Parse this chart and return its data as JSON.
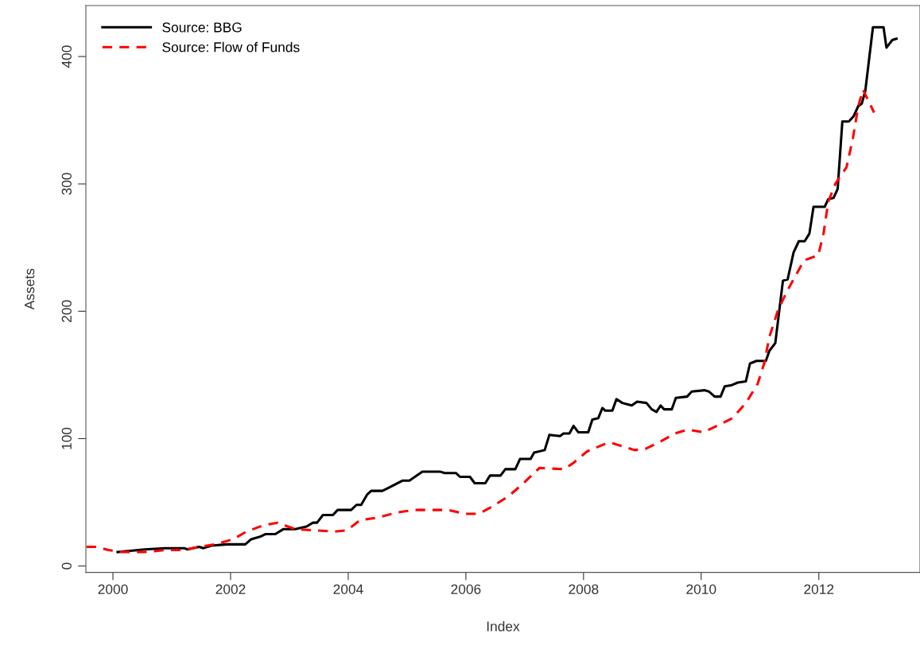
{
  "chart_data": {
    "type": "line",
    "xlabel": "Index",
    "ylabel": "Assets",
    "xlim": [
      1999.54,
      2013.72
    ],
    "ylim": [
      -5,
      440
    ],
    "xticks": [
      2000,
      2002,
      2004,
      2006,
      2008,
      2010,
      2012
    ],
    "yticks": [
      0,
      100,
      200,
      300,
      400
    ],
    "grid": false,
    "legend": "top left",
    "marker": "none",
    "series": [
      {
        "name": "Source: BBG",
        "color": "#000000",
        "line_style": "solid",
        "x": [
          2000.08,
          2000.54,
          2000.88,
          2001.21,
          2001.27,
          2001.46,
          2001.54,
          2001.67,
          2001.94,
          2002.25,
          2002.35,
          2002.5,
          2002.59,
          2002.76,
          2002.9,
          2003.1,
          2003.29,
          2003.4,
          2003.47,
          2003.57,
          2003.74,
          2003.82,
          2004.05,
          2004.14,
          2004.22,
          2004.32,
          2004.39,
          2004.58,
          2004.67,
          2004.92,
          2005.04,
          2005.26,
          2005.57,
          2005.64,
          2005.83,
          2005.9,
          2006.07,
          2006.15,
          2006.33,
          2006.41,
          2006.59,
          2006.67,
          2006.84,
          2006.92,
          2007.1,
          2007.16,
          2007.34,
          2007.42,
          2007.6,
          2007.66,
          2007.76,
          2007.83,
          2007.91,
          2008.08,
          2008.15,
          2008.25,
          2008.32,
          2008.37,
          2008.49,
          2008.56,
          2008.66,
          2008.82,
          2008.91,
          2009.07,
          2009.16,
          2009.24,
          2009.31,
          2009.37,
          2009.5,
          2009.57,
          2009.76,
          2009.84,
          2010.06,
          2010.13,
          2010.23,
          2010.33,
          2010.4,
          2010.52,
          2010.62,
          2010.76,
          2010.83,
          2010.94,
          2011.1,
          2011.16,
          2011.26,
          2011.39,
          2011.47,
          2011.57,
          2011.66,
          2011.76,
          2011.84,
          2011.91,
          2012.1,
          2012.16,
          2012.25,
          2012.32,
          2012.4,
          2012.51,
          2012.59,
          2012.67,
          2012.73,
          2012.79,
          2012.92,
          2013.1,
          2013.15,
          2013.25,
          2013.32
        ],
        "values": [
          11,
          13,
          14,
          14,
          13,
          15,
          14,
          16,
          17,
          17,
          21,
          23,
          25,
          25,
          29,
          29,
          31,
          34,
          34,
          40,
          40,
          44,
          44,
          48,
          48,
          56,
          59,
          59,
          61,
          67,
          67,
          74,
          74,
          73,
          73,
          70,
          70,
          65,
          65,
          71,
          71,
          76,
          76,
          84,
          84,
          89,
          91,
          103,
          102,
          104,
          104,
          110,
          105,
          105,
          115,
          116,
          124,
          122,
          122,
          131,
          128,
          126,
          129,
          128,
          123,
          121,
          126,
          123,
          123,
          132,
          133,
          137,
          138,
          137,
          133,
          133,
          141,
          142,
          144,
          145,
          159,
          161,
          161,
          169,
          175,
          224,
          225,
          246,
          255,
          255,
          261,
          282,
          282,
          288,
          289,
          296,
          349,
          349,
          353,
          361,
          363,
          373,
          423,
          423,
          407,
          413,
          414
        ]
      },
      {
        "name": "Source: Flow of Funds",
        "color": "#ff0000",
        "line_style": "dashed",
        "x": [
          1999.55,
          1999.73,
          1999.92,
          2000.16,
          2000.54,
          2000.88,
          2001.17,
          2001.46,
          2001.74,
          2002.04,
          2002.27,
          2002.56,
          2002.8,
          2003.09,
          2003.44,
          2003.76,
          2003.98,
          2004.2,
          2004.5,
          2004.83,
          2005.12,
          2005.46,
          2005.7,
          2005.98,
          2006.22,
          2006.46,
          2006.73,
          2006.98,
          2007.25,
          2007.67,
          2007.83,
          2008.06,
          2008.42,
          2008.52,
          2008.87,
          2009.05,
          2009.32,
          2009.55,
          2009.77,
          2010.04,
          2010.31,
          2010.53,
          2010.76,
          2010.96,
          2011.07,
          2011.16,
          2011.3,
          2011.45,
          2011.57,
          2011.75,
          2011.99,
          2012.08,
          2012.16,
          2012.28,
          2012.47,
          2012.58,
          2012.67,
          2012.75,
          2012.94
        ],
        "values": [
          15,
          15,
          12.5,
          11,
          11,
          12.5,
          12.5,
          15,
          17,
          21,
          27,
          32,
          34,
          29,
          28,
          27,
          28,
          36,
          38,
          42,
          44,
          44,
          44,
          41,
          41,
          47,
          55,
          65,
          77,
          76,
          81,
          90,
          97,
          96,
          91,
          92,
          98,
          104,
          107,
          105,
          111,
          116,
          128,
          143,
          159,
          180,
          200,
          215,
          225,
          240,
          244,
          261,
          286,
          300,
          313,
          336,
          361,
          374,
          356
        ]
      }
    ]
  }
}
